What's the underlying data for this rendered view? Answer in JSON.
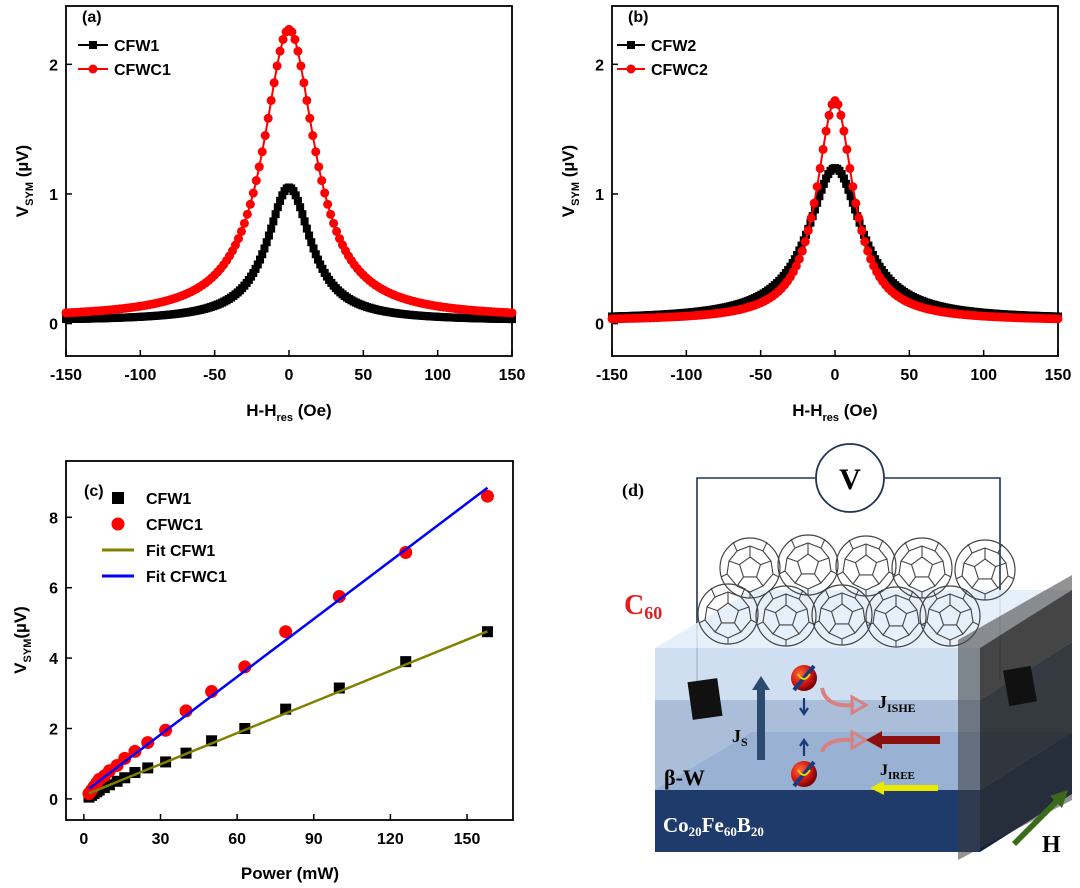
{
  "chart_data": [
    {
      "type": "line",
      "panel": "(a)",
      "xlabel": "H-H",
      "xlabel_sub": "res",
      "xlabel_unit": " (Oe)",
      "ylabel": "V",
      "ylabel_sub": "SYM",
      "ylabel_unit": " (µV)",
      "xlim": [
        -150,
        150
      ],
      "ylim": [
        -0.25,
        2.45
      ],
      "xticks": [
        -150,
        -100,
        -50,
        0,
        50,
        100,
        150
      ],
      "yticks": [
        0,
        1,
        2
      ],
      "legend_position": "top-left",
      "series": [
        {
          "name": "CFW1",
          "color": "#000000",
          "marker": "square",
          "peak": 1.05,
          "hwhm": 18,
          "offset": 0.02,
          "step": 1.5
        },
        {
          "name": "CFWC1",
          "color": "#ff0000",
          "marker": "circle",
          "peak": 2.27,
          "hwhm": 21,
          "offset": 0.04,
          "step": 2
        }
      ]
    },
    {
      "type": "line",
      "panel": "(b)",
      "xlabel": "H-H",
      "xlabel_sub": "res",
      "xlabel_unit": " (Oe)",
      "ylabel": "V",
      "ylabel_sub": "SYM",
      "ylabel_unit": " (µV)",
      "xlim": [
        -150,
        150
      ],
      "ylim": [
        -0.25,
        2.45
      ],
      "xticks": [
        -150,
        -100,
        -50,
        0,
        50,
        100,
        150
      ],
      "yticks": [
        0,
        1,
        2
      ],
      "legend_position": "top-left",
      "series": [
        {
          "name": "CFW2",
          "color": "#000000",
          "marker": "square",
          "peak": 1.2,
          "hwhm": 22,
          "offset": 0.03,
          "step": 1.5
        },
        {
          "name": "CFWC2",
          "color": "#ff0000",
          "marker": "circle",
          "peak": 1.72,
          "hwhm": 15,
          "offset": 0.02,
          "step": 2
        }
      ]
    },
    {
      "type": "scatter",
      "panel": "(c)",
      "xlabel": "Power (mW)",
      "ylabel": "V",
      "ylabel_sub": "SYM",
      "ylabel_unit": "(µV)",
      "xlim": [
        -7,
        168
      ],
      "ylim": [
        -0.6,
        9.6
      ],
      "xticks": [
        0,
        30,
        60,
        90,
        120,
        150
      ],
      "yticks": [
        0,
        2,
        4,
        6,
        8
      ],
      "legend_position": "top-left",
      "series": [
        {
          "name": "CFW1",
          "color": "#000000",
          "marker": "square",
          "x": [
            2,
            3,
            4,
            5,
            6,
            8,
            10,
            13,
            16,
            20,
            25,
            32,
            40,
            50,
            63,
            79,
            100,
            126,
            158
          ],
          "y": [
            0.05,
            0.1,
            0.15,
            0.2,
            0.25,
            0.32,
            0.4,
            0.5,
            0.6,
            0.75,
            0.88,
            1.05,
            1.3,
            1.65,
            2.0,
            2.55,
            3.15,
            3.9,
            4.75
          ]
        },
        {
          "name": "CFWC1",
          "color": "#ff0000",
          "marker": "circle",
          "x": [
            2,
            3,
            4,
            5,
            6,
            8,
            10,
            13,
            16,
            20,
            25,
            32,
            40,
            50,
            63,
            79,
            100,
            126,
            158
          ],
          "y": [
            0.15,
            0.25,
            0.35,
            0.45,
            0.55,
            0.65,
            0.8,
            0.95,
            1.15,
            1.35,
            1.6,
            1.95,
            2.5,
            3.05,
            3.75,
            4.75,
            5.75,
            7.0,
            8.6
          ]
        },
        {
          "name": "Fit CFW1",
          "color": "#808000",
          "marker": "line",
          "fit": [
            0.1,
            0.0295
          ]
        },
        {
          "name": "Fit CFWC1",
          "color": "#0000ff",
          "marker": "line",
          "fit": [
            0.18,
            0.0548
          ]
        }
      ]
    }
  ],
  "schematic": {
    "panel": "(d)",
    "voltmeter": "V",
    "c60_label": "C",
    "c60_sub": "60",
    "spin_current": "J",
    "spin_current_sub": "S",
    "j_ishe": "J",
    "j_ishe_sub": "ISHE",
    "j_iree": "J",
    "j_iree_sub": "IREE",
    "beta_w": "β-W",
    "cofeb_parts": [
      "Co",
      "20",
      "Fe",
      "60",
      "B",
      "20"
    ],
    "field": "H",
    "colors": {
      "c60": "#e02020",
      "substrate": "#1f3b6b",
      "spin": "#c81010",
      "j_ishe_arrow": "#8b1010",
      "j_iree_arrow": "#e8e800",
      "field_arrow": "#3a6b1a"
    }
  }
}
